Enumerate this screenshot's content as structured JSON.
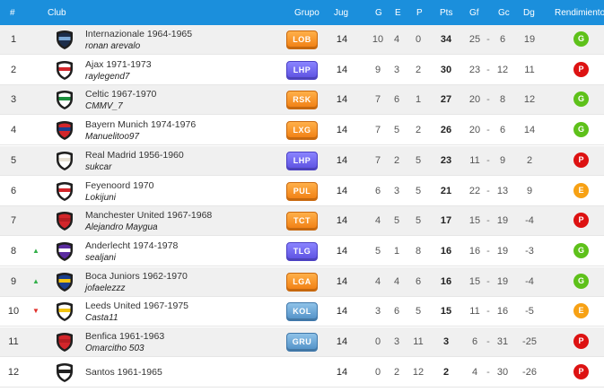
{
  "header": {
    "pos": "#",
    "club": "Club",
    "grupo": "Grupo",
    "jug": "Jug",
    "g": "G",
    "e": "E",
    "p": "P",
    "pts": "Pts",
    "gf": "Gf",
    "gc": "Gc",
    "dg": "Dg",
    "rendimiento": "Rendimiento"
  },
  "rows": [
    {
      "pos": "1",
      "trend": "",
      "club": "Internazionale 1964-1965",
      "manager": "ronan arevalo",
      "crest": [
        "#1c2d4a",
        "#7aa7d6"
      ],
      "group": "LOB",
      "group_color": "orange",
      "jug": "14",
      "g": "10",
      "e": "4",
      "p": "0",
      "pts": "34",
      "gf": "25",
      "gc": "6",
      "dg": "19",
      "rend": "G",
      "rend_color": "green"
    },
    {
      "pos": "2",
      "trend": "",
      "club": "Ajax 1971-1973",
      "manager": "raylegend7",
      "crest": [
        "#ffffff",
        "#d3262b"
      ],
      "group": "LHP",
      "group_color": "purple",
      "jug": "14",
      "g": "9",
      "e": "3",
      "p": "2",
      "pts": "30",
      "gf": "23",
      "gc": "12",
      "dg": "11",
      "rend": "P",
      "rend_color": "red"
    },
    {
      "pos": "3",
      "trend": "",
      "club": "Celtic 1967-1970",
      "manager": "CMMV_7",
      "crest": [
        "#ffffff",
        "#1b8f3c"
      ],
      "group": "RSK",
      "group_color": "orange",
      "jug": "14",
      "g": "7",
      "e": "6",
      "p": "1",
      "pts": "27",
      "gf": "20",
      "gc": "8",
      "dg": "12",
      "rend": "G",
      "rend_color": "green"
    },
    {
      "pos": "4",
      "trend": "",
      "club": "Bayern Munich 1974-1976",
      "manager": "Manuelitoo97",
      "crest": [
        "#d3262b",
        "#1a3f8f"
      ],
      "group": "LXG",
      "group_color": "orange",
      "jug": "14",
      "g": "7",
      "e": "5",
      "p": "2",
      "pts": "26",
      "gf": "20",
      "gc": "6",
      "dg": "14",
      "rend": "G",
      "rend_color": "green"
    },
    {
      "pos": "5",
      "trend": "",
      "club": "Real Madrid 1956-1960",
      "manager": "sukcar",
      "crest": [
        "#ffffff",
        "#e8e3d6"
      ],
      "group": "LHP",
      "group_color": "purple",
      "jug": "14",
      "g": "7",
      "e": "2",
      "p": "5",
      "pts": "23",
      "gf": "11",
      "gc": "9",
      "dg": "2",
      "rend": "P",
      "rend_color": "red"
    },
    {
      "pos": "6",
      "trend": "",
      "club": "Feyenoord 1970",
      "manager": "Lokijuni",
      "crest": [
        "#ffffff",
        "#d3262b"
      ],
      "group": "PUL",
      "group_color": "orange",
      "jug": "14",
      "g": "6",
      "e": "3",
      "p": "5",
      "pts": "21",
      "gf": "22",
      "gc": "13",
      "dg": "9",
      "rend": "E",
      "rend_color": "orange"
    },
    {
      "pos": "7",
      "trend": "",
      "club": "Manchester United 1967-1968",
      "manager": "Alejandro Maygua",
      "crest": [
        "#d3262b",
        "#b51d22"
      ],
      "group": "TCT",
      "group_color": "orange",
      "jug": "14",
      "g": "4",
      "e": "5",
      "p": "5",
      "pts": "17",
      "gf": "15",
      "gc": "19",
      "dg": "-4",
      "rend": "P",
      "rend_color": "red"
    },
    {
      "pos": "8",
      "trend": "up",
      "club": "Anderlecht 1974-1978",
      "manager": "sealjani",
      "crest": [
        "#5b2ca0",
        "#ffffff"
      ],
      "group": "TLG",
      "group_color": "purple",
      "jug": "14",
      "g": "5",
      "e": "1",
      "p": "8",
      "pts": "16",
      "gf": "16",
      "gc": "19",
      "dg": "-3",
      "rend": "G",
      "rend_color": "green"
    },
    {
      "pos": "9",
      "trend": "up",
      "club": "Boca Juniors 1962-1970",
      "manager": "jofaelezzz",
      "crest": [
        "#1a3f8f",
        "#f2c412"
      ],
      "group": "LGA",
      "group_color": "orange",
      "jug": "14",
      "g": "4",
      "e": "4",
      "p": "6",
      "pts": "16",
      "gf": "15",
      "gc": "19",
      "dg": "-4",
      "rend": "G",
      "rend_color": "green"
    },
    {
      "pos": "10",
      "trend": "down",
      "club": "Leeds United 1967-1975",
      "manager": "Casta11",
      "crest": [
        "#ffffff",
        "#f2c412"
      ],
      "group": "KOL",
      "group_color": "blue",
      "jug": "14",
      "g": "3",
      "e": "6",
      "p": "5",
      "pts": "15",
      "gf": "11",
      "gc": "16",
      "dg": "-5",
      "rend": "E",
      "rend_color": "orange"
    },
    {
      "pos": "11",
      "trend": "",
      "club": "Benfica 1961-1963",
      "manager": "Omarcitho 503",
      "crest": [
        "#d3262b",
        "#b51d22"
      ],
      "group": "GRU",
      "group_color": "blue",
      "jug": "14",
      "g": "0",
      "e": "3",
      "p": "11",
      "pts": "3",
      "gf": "6",
      "gc": "31",
      "dg": "-25",
      "rend": "P",
      "rend_color": "red"
    },
    {
      "pos": "12",
      "trend": "",
      "club": "Santos 1961-1965",
      "manager": "",
      "crest": [
        "#ffffff",
        "#222222"
      ],
      "group": "",
      "group_color": "",
      "jug": "14",
      "g": "0",
      "e": "2",
      "p": "12",
      "pts": "2",
      "gf": "4",
      "gc": "30",
      "dg": "-26",
      "rend": "P",
      "rend_color": "red"
    }
  ]
}
